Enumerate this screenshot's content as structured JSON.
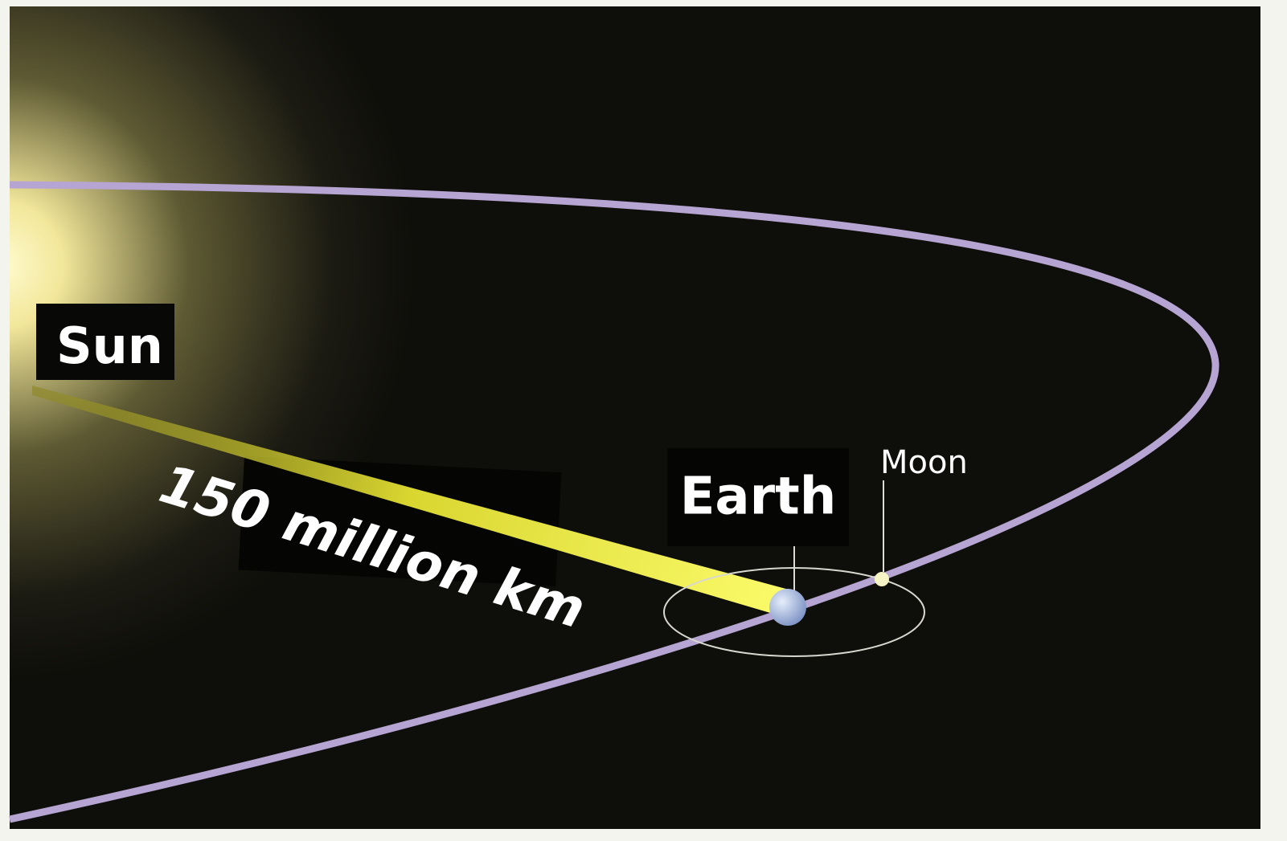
{
  "nodes": [
    {
      "label": "Sun"
    },
    {
      "label": "Earth"
    },
    {
      "label": "Moon"
    }
  ],
  "distance_label": "150 million km"
}
